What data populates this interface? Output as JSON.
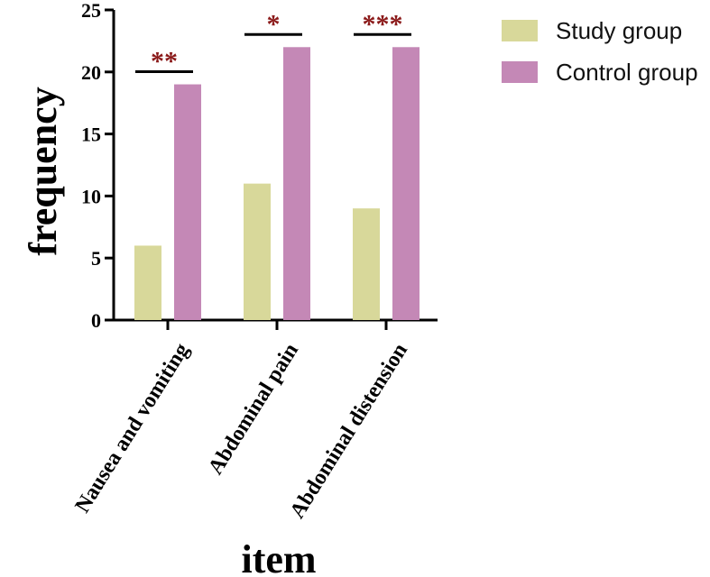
{
  "chart_data": {
    "type": "bar",
    "ylabel": "frequency",
    "xlabel": "item",
    "ylim": [
      0,
      25
    ],
    "yticks": [
      "0",
      "5",
      "10",
      "15",
      "20",
      "25"
    ],
    "categories": [
      "Nausea and vomiting",
      "Abdominal pain",
      "Abdominal distension"
    ],
    "series": [
      {
        "name": "Study group",
        "color": "#d8d89a",
        "values": [
          6,
          11,
          9
        ]
      },
      {
        "name": "Control group",
        "color": "#c488b6",
        "values": [
          19,
          22,
          22
        ]
      }
    ],
    "significance": [
      "**",
      "*",
      "***"
    ],
    "significance_color": "#8b1a1a",
    "legend_position": "top-right"
  }
}
